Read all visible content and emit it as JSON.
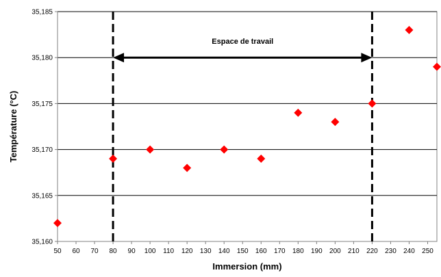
{
  "chart_data": {
    "type": "scatter",
    "xlabel": "Immersion (mm)",
    "ylabel": "Température (°C)",
    "xlim": [
      50,
      255
    ],
    "ylim": [
      35.16,
      35.185
    ],
    "x_ticks": [
      50,
      60,
      70,
      80,
      90,
      100,
      110,
      120,
      130,
      140,
      150,
      160,
      170,
      180,
      190,
      200,
      210,
      220,
      230,
      240,
      250
    ],
    "y_ticks": [
      35.16,
      35.165,
      35.17,
      35.175,
      35.18,
      35.185
    ],
    "y_tick_labels": [
      "35,160",
      "35,165",
      "35,170",
      "35,175",
      "35,180",
      "35,185"
    ],
    "grid": "horizontal",
    "marker": "diamond",
    "marker_color": "#ff0000",
    "series": [
      {
        "points": [
          {
            "x": 50,
            "y": 35.162
          },
          {
            "x": 80,
            "y": 35.169
          },
          {
            "x": 100,
            "y": 35.17
          },
          {
            "x": 120,
            "y": 35.168
          },
          {
            "x": 140,
            "y": 35.17
          },
          {
            "x": 160,
            "y": 35.169
          },
          {
            "x": 180,
            "y": 35.174
          },
          {
            "x": 200,
            "y": 35.173
          },
          {
            "x": 220,
            "y": 35.175
          },
          {
            "x": 240,
            "y": 35.183
          },
          {
            "x": 255,
            "y": 35.179
          }
        ]
      }
    ],
    "annotation": {
      "text": "Espace de travail",
      "x_start": 80,
      "x_end": 220,
      "y": 35.18,
      "vlines": [
        80,
        220
      ]
    }
  }
}
